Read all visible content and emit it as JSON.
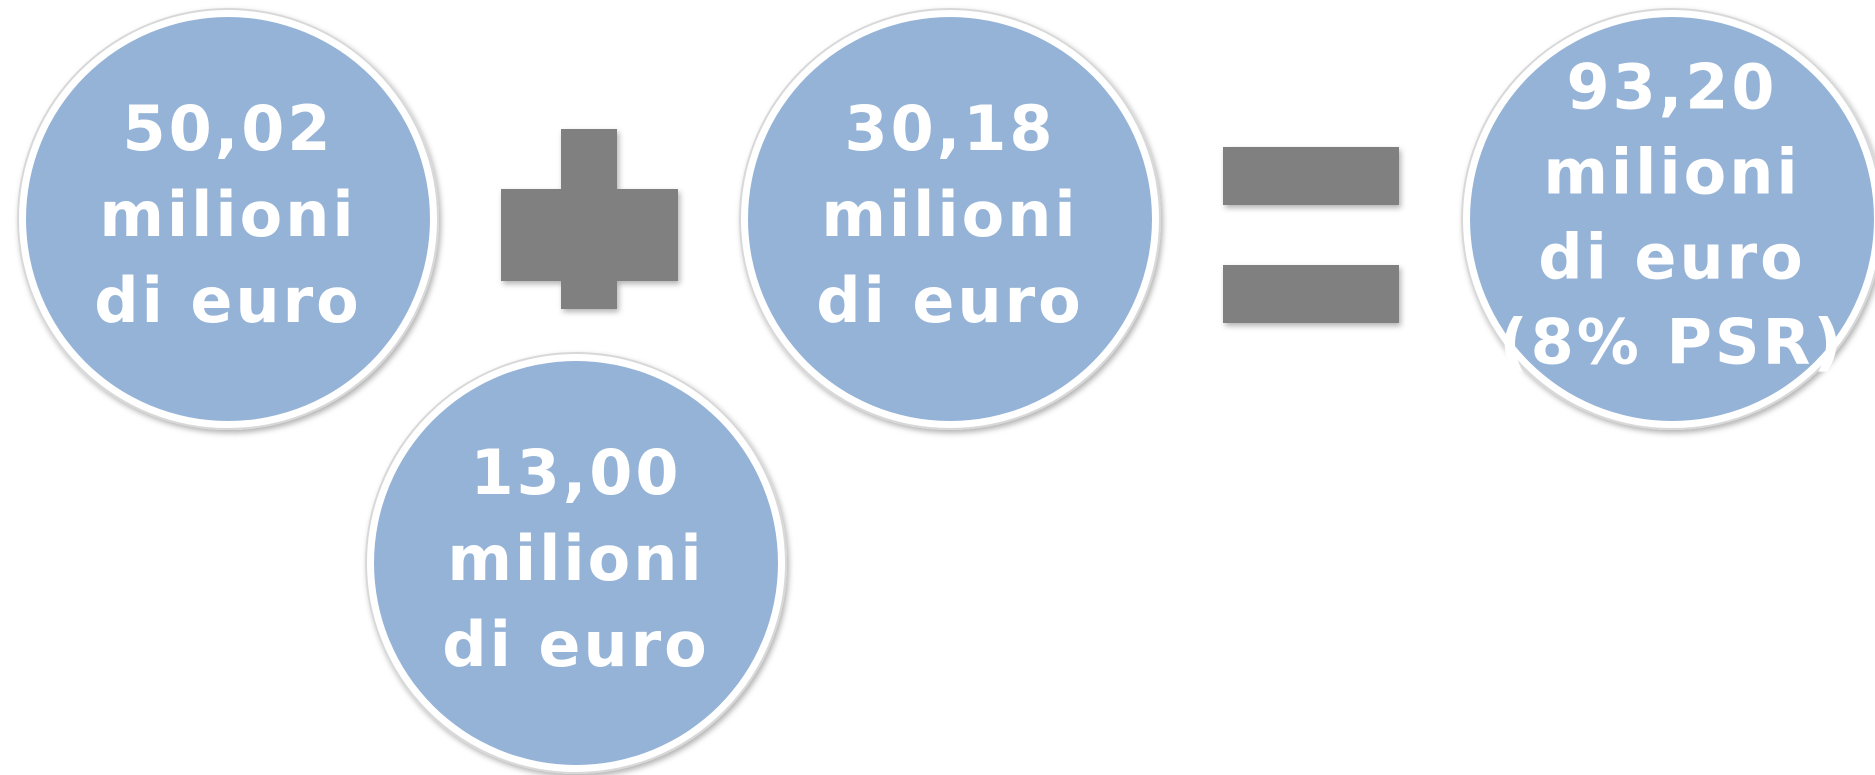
{
  "circles": [
    {
      "lines": [
        "50,02",
        "milioni",
        "di euro"
      ]
    },
    {
      "lines": [
        "13,00",
        "milioni",
        "di euro"
      ]
    },
    {
      "lines": [
        "30,18",
        "milioni",
        "di euro"
      ]
    },
    {
      "lines": [
        "93,20",
        "milioni",
        "di euro",
        "(8% PSR)"
      ]
    }
  ]
}
